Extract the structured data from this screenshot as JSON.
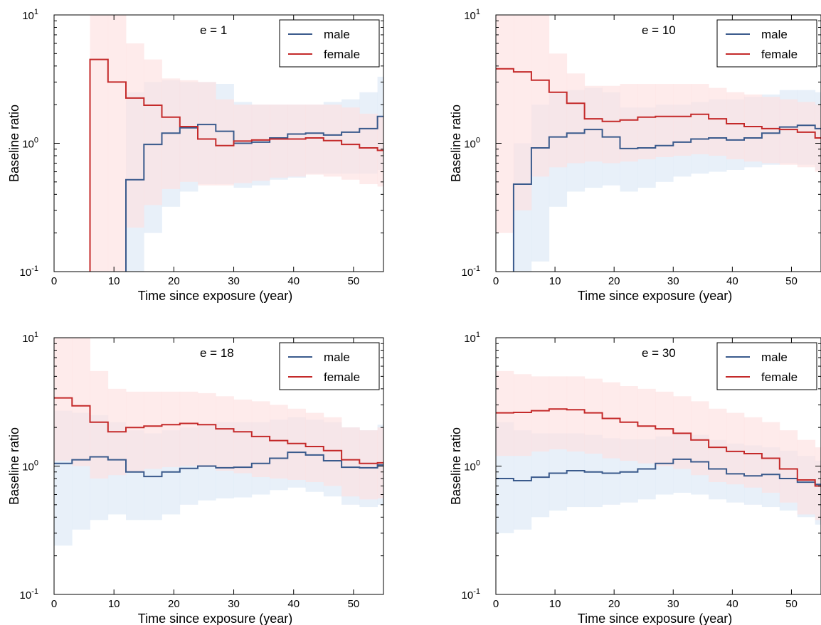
{
  "colors": {
    "male": "#3a5a8c",
    "female": "#c42a2a",
    "male_band": "#dce8f6",
    "female_band": "#fde0e0"
  },
  "chart_data": [
    {
      "type": "line",
      "step": true,
      "scale": {
        "y": "log"
      },
      "annotation": "e = 1",
      "xlabel": "Time since exposure (year)",
      "ylabel": "Baseline ratio",
      "xlim": [
        0,
        55
      ],
      "ylim": [
        0.1,
        10
      ],
      "xticks": [
        "0",
        "10",
        "20",
        "30",
        "40",
        "50"
      ],
      "yticks": {
        "base": "10",
        "exponents": [
          "-1",
          "0",
          "1"
        ]
      },
      "legend": {
        "placement": "top-right"
      },
      "x_edges": [
        0,
        3,
        6,
        9,
        12,
        15,
        18,
        21,
        24,
        27,
        30,
        33,
        36,
        39,
        42,
        45,
        48,
        51,
        54,
        55
      ],
      "series": [
        {
          "name": "male",
          "values": [
            0.01,
            0.01,
            0.01,
            0.01,
            0.52,
            0.98,
            1.2,
            1.32,
            1.4,
            1.24,
            1.0,
            1.02,
            1.1,
            1.18,
            1.2,
            1.16,
            1.22,
            1.3,
            1.62
          ],
          "lower": [
            0.01,
            0.01,
            0.01,
            0.01,
            0.1,
            0.2,
            0.32,
            0.42,
            0.48,
            0.48,
            0.45,
            0.47,
            0.52,
            0.54,
            0.58,
            0.58,
            0.58,
            0.58,
            0.62
          ],
          "upper": [
            0.01,
            0.01,
            0.01,
            0.01,
            2.5,
            3.0,
            3.1,
            3.0,
            3.0,
            2.9,
            2.1,
            2.0,
            2.0,
            2.0,
            2.0,
            2.1,
            2.2,
            2.5,
            3.3
          ]
        },
        {
          "name": "female",
          "values": [
            0.01,
            0.01,
            4.5,
            3.0,
            2.25,
            1.98,
            1.6,
            1.35,
            1.08,
            0.96,
            1.04,
            1.06,
            1.08,
            1.08,
            1.1,
            1.05,
            0.98,
            0.92,
            0.88
          ],
          "lower": [
            0.01,
            0.01,
            0.1,
            0.1,
            0.22,
            0.33,
            0.44,
            0.5,
            0.47,
            0.47,
            0.49,
            0.51,
            0.54,
            0.55,
            0.57,
            0.55,
            0.52,
            0.48,
            0.46
          ],
          "upper": [
            0.01,
            0.01,
            10,
            10,
            6.0,
            4.5,
            3.2,
            3.1,
            3.0,
            2.2,
            2.0,
            2.0,
            2.0,
            2.0,
            2.0,
            2.0,
            1.9,
            1.7,
            1.6
          ]
        }
      ]
    },
    {
      "type": "line",
      "step": true,
      "scale": {
        "y": "log"
      },
      "annotation": "e = 10",
      "xlabel": "Time since exposure (year)",
      "ylabel": "Baseline ratio",
      "xlim": [
        0,
        55
      ],
      "ylim": [
        0.1,
        10
      ],
      "xticks": [
        "0",
        "10",
        "20",
        "30",
        "40",
        "50"
      ],
      "yticks": {
        "base": "10",
        "exponents": [
          "-1",
          "0",
          "1"
        ]
      },
      "legend": {
        "placement": "top-right"
      },
      "x_edges": [
        0,
        3,
        6,
        9,
        12,
        15,
        18,
        21,
        24,
        27,
        30,
        33,
        36,
        39,
        42,
        45,
        48,
        51,
        54,
        55
      ],
      "series": [
        {
          "name": "male",
          "values": [
            0.01,
            0.48,
            0.92,
            1.12,
            1.2,
            1.28,
            1.12,
            0.91,
            0.92,
            0.96,
            1.02,
            1.08,
            1.1,
            1.06,
            1.1,
            1.2,
            1.34,
            1.38,
            1.3
          ],
          "lower": [
            0.01,
            0.05,
            0.12,
            0.32,
            0.42,
            0.45,
            0.47,
            0.42,
            0.45,
            0.5,
            0.55,
            0.58,
            0.6,
            0.62,
            0.65,
            0.68,
            0.7,
            0.68,
            0.62
          ],
          "upper": [
            0.01,
            1.0,
            2.0,
            2.5,
            2.6,
            2.7,
            2.5,
            1.9,
            1.9,
            2.0,
            2.0,
            2.1,
            2.2,
            2.2,
            2.3,
            2.4,
            2.6,
            2.6,
            2.5
          ]
        },
        {
          "name": "female",
          "values": [
            3.8,
            3.6,
            3.1,
            2.5,
            2.05,
            1.55,
            1.48,
            1.52,
            1.6,
            1.62,
            1.62,
            1.68,
            1.55,
            1.42,
            1.35,
            1.3,
            1.28,
            1.22,
            1.1
          ],
          "lower": [
            0.2,
            0.3,
            0.55,
            0.65,
            0.7,
            0.72,
            0.7,
            0.72,
            0.75,
            0.78,
            0.8,
            0.82,
            0.8,
            0.75,
            0.72,
            0.7,
            0.68,
            0.65,
            0.6
          ],
          "upper": [
            10,
            10,
            10,
            5.0,
            3.5,
            2.8,
            2.8,
            2.9,
            2.9,
            2.9,
            2.9,
            2.9,
            2.7,
            2.5,
            2.4,
            2.3,
            2.2,
            2.1,
            2.0
          ]
        }
      ]
    },
    {
      "type": "line",
      "step": true,
      "scale": {
        "y": "log"
      },
      "annotation": "e = 18",
      "xlabel": "Time since exposure (year)",
      "ylabel": "Baseline ratio",
      "xlim": [
        0,
        55
      ],
      "ylim": [
        0.1,
        10
      ],
      "xticks": [
        "0",
        "10",
        "20",
        "30",
        "40",
        "50"
      ],
      "yticks": {
        "base": "10",
        "exponents": [
          "-1",
          "0",
          "1"
        ]
      },
      "legend": {
        "placement": "top-right"
      },
      "x_edges": [
        0,
        3,
        6,
        9,
        12,
        15,
        18,
        21,
        24,
        27,
        30,
        33,
        36,
        39,
        42,
        45,
        48,
        51,
        54,
        55
      ],
      "series": [
        {
          "name": "male",
          "values": [
            1.05,
            1.12,
            1.18,
            1.12,
            0.9,
            0.83,
            0.9,
            0.96,
            1.0,
            0.97,
            0.98,
            1.05,
            1.15,
            1.28,
            1.22,
            1.1,
            0.98,
            0.97,
            1.02
          ],
          "lower": [
            0.24,
            0.32,
            0.38,
            0.42,
            0.38,
            0.38,
            0.42,
            0.5,
            0.54,
            0.56,
            0.57,
            0.6,
            0.65,
            0.68,
            0.63,
            0.58,
            0.5,
            0.48,
            0.5
          ],
          "upper": [
            2.7,
            2.6,
            2.5,
            2.2,
            1.9,
            1.8,
            1.9,
            2.0,
            2.1,
            2.2,
            2.2,
            2.2,
            2.3,
            2.4,
            2.3,
            2.2,
            2.0,
            1.9,
            2.1
          ]
        },
        {
          "name": "female",
          "values": [
            3.4,
            2.95,
            2.2,
            1.85,
            2.0,
            2.05,
            2.1,
            2.15,
            2.1,
            1.95,
            1.85,
            1.7,
            1.58,
            1.5,
            1.42,
            1.32,
            1.12,
            1.05,
            1.06
          ],
          "lower": [
            1.1,
            1.0,
            0.8,
            0.85,
            0.9,
            0.95,
            0.98,
            1.0,
            0.98,
            0.92,
            0.88,
            0.82,
            0.8,
            0.78,
            0.75,
            0.7,
            0.58,
            0.55,
            0.56
          ],
          "upper": [
            10,
            10,
            5.5,
            4.0,
            3.8,
            3.8,
            3.8,
            3.8,
            3.7,
            3.5,
            3.3,
            3.2,
            3.0,
            2.8,
            2.6,
            2.4,
            2.0,
            1.9,
            2.0
          ]
        }
      ]
    },
    {
      "type": "line",
      "step": true,
      "scale": {
        "y": "log"
      },
      "annotation": "e = 30",
      "xlabel": "Time since exposure (year)",
      "ylabel": "Baseline ratio",
      "xlim": [
        0,
        55
      ],
      "ylim": [
        0.1,
        10
      ],
      "xticks": [
        "0",
        "10",
        "20",
        "30",
        "40",
        "50"
      ],
      "yticks": {
        "base": "10",
        "exponents": [
          "-1",
          "0",
          "1"
        ]
      },
      "legend": {
        "placement": "top-right"
      },
      "x_edges": [
        0,
        3,
        6,
        9,
        12,
        15,
        18,
        21,
        24,
        27,
        30,
        33,
        36,
        39,
        42,
        45,
        48,
        51,
        54,
        55
      ],
      "series": [
        {
          "name": "male",
          "values": [
            0.8,
            0.77,
            0.82,
            0.88,
            0.92,
            0.9,
            0.88,
            0.9,
            0.95,
            1.05,
            1.13,
            1.08,
            0.95,
            0.87,
            0.84,
            0.86,
            0.8,
            0.75,
            0.72
          ],
          "lower": [
            0.3,
            0.32,
            0.4,
            0.45,
            0.48,
            0.48,
            0.5,
            0.52,
            0.55,
            0.6,
            0.62,
            0.6,
            0.55,
            0.52,
            0.5,
            0.48,
            0.45,
            0.4,
            0.35
          ],
          "upper": [
            2.2,
            1.9,
            1.8,
            1.8,
            1.8,
            1.75,
            1.65,
            1.62,
            1.62,
            1.7,
            1.8,
            1.75,
            1.6,
            1.5,
            1.45,
            1.4,
            1.32,
            1.2,
            1.1
          ]
        },
        {
          "name": "female",
          "values": [
            2.6,
            2.62,
            2.7,
            2.78,
            2.75,
            2.6,
            2.35,
            2.2,
            2.05,
            1.95,
            1.8,
            1.6,
            1.4,
            1.3,
            1.25,
            1.15,
            0.95,
            0.78,
            0.7
          ],
          "lower": [
            1.2,
            1.2,
            1.3,
            1.35,
            1.3,
            1.25,
            1.15,
            1.1,
            1.05,
            1.0,
            0.95,
            0.85,
            0.75,
            0.72,
            0.68,
            0.62,
            0.52,
            0.42,
            0.38
          ],
          "upper": [
            5.5,
            5.2,
            5.0,
            5.0,
            5.0,
            4.8,
            4.5,
            4.2,
            4.0,
            3.8,
            3.5,
            3.2,
            2.8,
            2.6,
            2.4,
            2.2,
            1.9,
            1.6,
            1.4
          ]
        }
      ]
    }
  ]
}
